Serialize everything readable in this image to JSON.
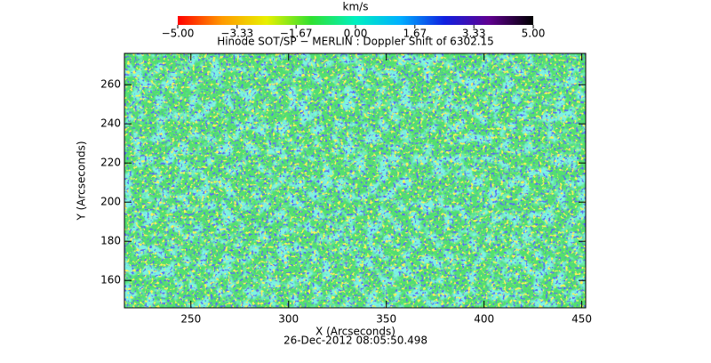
{
  "chart_data": {
    "type": "image",
    "title": "Hinode SOT/SP − MERLIN : Doppler Shift of 6302.15",
    "x_label": "X (Arcseconds)",
    "y_label": "Y (Arcseconds)",
    "date": "26-Dec-2012 08:05:50.498",
    "xlim": [
      216,
      452
    ],
    "xticks": [
      250,
      300,
      350,
      400,
      450
    ],
    "ylim": [
      146,
      276
    ],
    "yticks": [
      160,
      180,
      200,
      220,
      240,
      260
    ],
    "colorbar": {
      "label": "km/s",
      "lim": [
        -5,
        5
      ],
      "ticks": [
        {
          "value": -5,
          "label": "−5.00"
        },
        {
          "value": -3.33,
          "label": "−3.33"
        },
        {
          "value": -1.67,
          "label": "−1.67"
        },
        {
          "value": 0,
          "label": "0.00"
        },
        {
          "value": 1.67,
          "label": "1.67"
        },
        {
          "value": 3.33,
          "label": "3.33"
        },
        {
          "value": 5,
          "label": "5.00"
        }
      ],
      "colors": [
        "#ff0000",
        "#ff9a00",
        "#e8f000",
        "#30e030",
        "#00f0c0",
        "#00b0ff",
        "#1020e0",
        "#600090",
        "#000000"
      ]
    }
  }
}
